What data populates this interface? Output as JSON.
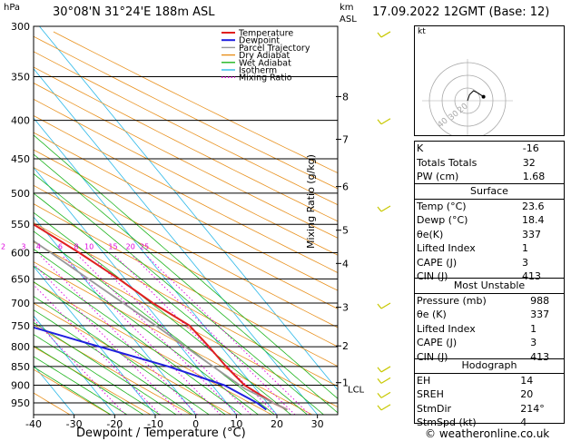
{
  "header": {
    "p_unit": "hPa",
    "location": "30°08'N  31°24'E  188m  ASL",
    "km_label": "km",
    "asl_label": "ASL",
    "date": "17.09.2022  12GMT  (Base: 12)"
  },
  "footer": {
    "credit": "© weatheronline.co.uk"
  },
  "chart_data": {
    "type": "line",
    "xlabel": "Dewpoint / Temperature (°C)",
    "ylabel": "hPa",
    "mixing_ratio_label": "Mixing Ratio (g/kg)",
    "xlim": [
      -40,
      35
    ],
    "ylim": [
      970,
      300
    ],
    "x_ticks": [
      -40,
      -30,
      -20,
      -10,
      0,
      10,
      20,
      30
    ],
    "pressure_ticks": [
      300,
      350,
      400,
      450,
      500,
      550,
      600,
      650,
      700,
      750,
      800,
      850,
      900,
      950
    ],
    "km_ticks": [
      {
        "label": "8",
        "p": 372
      },
      {
        "label": "7",
        "p": 424
      },
      {
        "label": "6",
        "p": 490
      },
      {
        "label": "5",
        "p": 560
      },
      {
        "label": "4",
        "p": 620
      },
      {
        "label": "3",
        "p": 709
      },
      {
        "label": "2",
        "p": 798
      },
      {
        "label": "1",
        "p": 893
      }
    ],
    "lcl_label": "LCL",
    "lcl_p": 910,
    "mixing_ratio_values": [
      "1",
      "2",
      "3",
      "4",
      "6",
      "8",
      "10",
      "15",
      "20",
      "25"
    ],
    "legend": [
      "Temperature",
      "Dewpoint",
      "Parcel Trajectory",
      "Dry Adiabat",
      "Wet Adiabat",
      "Isotherm",
      "Mixing Ratio"
    ],
    "series": [
      {
        "name": "Temperature",
        "points": [
          [
            970,
            23.6
          ],
          [
            950,
            21.5
          ],
          [
            900,
            18.0
          ],
          [
            850,
            17.2
          ],
          [
            800,
            17.0
          ],
          [
            750,
            16.5
          ],
          [
            700,
            12.0
          ],
          [
            650,
            8.5
          ],
          [
            600,
            4.0
          ],
          [
            550,
            -1.5
          ],
          [
            500,
            -7.5
          ],
          [
            450,
            -13.5
          ],
          [
            400,
            -21.0
          ],
          [
            350,
            -29.0
          ],
          [
            300,
            -38.0
          ]
        ]
      },
      {
        "name": "Dewpoint",
        "points": [
          [
            970,
            18.4
          ],
          [
            950,
            17.5
          ],
          [
            900,
            13.0
          ],
          [
            850,
            3.0
          ],
          [
            800,
            -10.0
          ],
          [
            750,
            -23.5
          ],
          [
            700,
            -25.0
          ],
          [
            650,
            -27.5
          ],
          [
            600,
            -30.5
          ],
          [
            550,
            -33.5
          ],
          [
            500,
            -35.0
          ],
          [
            450,
            -47.0
          ],
          [
            400,
            -53.0
          ],
          [
            350,
            -60.0
          ],
          [
            300,
            -61.0
          ]
        ]
      },
      {
        "name": "Parcel Trajectory",
        "points": [
          [
            970,
            23.6
          ],
          [
            910,
            17.4
          ],
          [
            850,
            14.0
          ],
          [
            800,
            11.2
          ],
          [
            750,
            8.2
          ],
          [
            700,
            4.7
          ],
          [
            650,
            1.0
          ],
          [
            600,
            -3.0
          ],
          [
            550,
            -7.5
          ],
          [
            500,
            -12.5
          ],
          [
            450,
            -18.0
          ],
          [
            400,
            -24.5
          ],
          [
            350,
            -32.0
          ],
          [
            300,
            -41.0
          ]
        ]
      }
    ],
    "colors": {
      "temperature": "#e02020",
      "dewpoint": "#2020e0",
      "parcel": "#999999",
      "dry_adiabat": "#e8901c",
      "wet_adiabat": "#1eb41e",
      "isotherm": "#2ab8e8",
      "mixing_ratio": "#dd00dd"
    },
    "wind_barb_color": "#c8c800"
  },
  "hodograph": {
    "label": "kt",
    "ring_labels": [
      "40",
      "30",
      "20"
    ],
    "points": [
      [
        0,
        0
      ],
      [
        1,
        3
      ],
      [
        3,
        5
      ],
      [
        5,
        4
      ],
      [
        8,
        2
      ]
    ]
  },
  "indices": {
    "top": [
      {
        "label": "K",
        "value": "-16"
      },
      {
        "label": "Totals Totals",
        "value": "32"
      },
      {
        "label": "PW (cm)",
        "value": "1.68"
      }
    ],
    "surface": {
      "title": "Surface",
      "rows": [
        {
          "label": "Temp (°C)",
          "value": "23.6"
        },
        {
          "label": "Dewp (°C)",
          "value": "18.4"
        },
        {
          "label": "θe(K)",
          "value": "337"
        },
        {
          "label": "Lifted Index",
          "value": "1"
        },
        {
          "label": "CAPE (J)",
          "value": "3"
        },
        {
          "label": "CIN (J)",
          "value": "413"
        }
      ]
    },
    "unstable": {
      "title": "Most Unstable",
      "rows": [
        {
          "label": "Pressure (mb)",
          "value": "988"
        },
        {
          "label": "θe (K)",
          "value": "337"
        },
        {
          "label": "Lifted Index",
          "value": "1"
        },
        {
          "label": "CAPE (J)",
          "value": "3"
        },
        {
          "label": "CIN (J)",
          "value": "413"
        }
      ]
    },
    "hodograph": {
      "title": "Hodograph",
      "rows": [
        {
          "label": "EH",
          "value": "14"
        },
        {
          "label": "SREH",
          "value": "20"
        },
        {
          "label": "StmDir",
          "value": "214°"
        },
        {
          "label": "StmSpd (kt)",
          "value": "4"
        }
      ]
    }
  }
}
